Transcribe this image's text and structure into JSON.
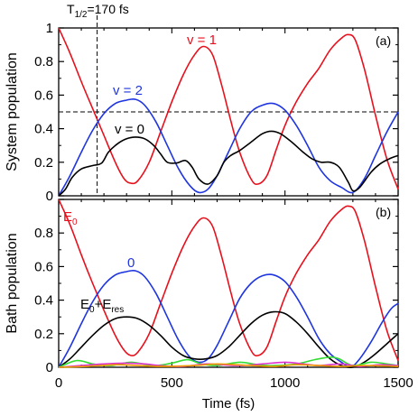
{
  "header": {
    "t_half": "T",
    "t_half_sub": "1/2",
    "t_half_value": "=170 fs"
  },
  "colors": {
    "red": "#e8101c",
    "blue": "#1f35e0",
    "black": "#000000",
    "green": "#33dd33",
    "magenta": "#dd33cc",
    "orange": "#ee9900"
  },
  "chart_data": [
    {
      "type": "line",
      "panel_label": "(a)",
      "ylabel": "System population",
      "xlim": [
        0,
        1500
      ],
      "ylim": [
        0,
        1
      ],
      "yticks": [
        "0",
        "0.2",
        "0.4",
        "0.6",
        "0.8",
        "1"
      ],
      "xticks": [],
      "grid": false,
      "annotations": {
        "vline_x": 170,
        "hline_y": 0.5
      },
      "series": [
        {
          "name": "v = 1",
          "color": "#e8101c",
          "points": [
            [
              0,
              1.0
            ],
            [
              50,
              0.85
            ],
            [
              100,
              0.68
            ],
            [
              150,
              0.52
            ],
            [
              200,
              0.36
            ],
            [
              250,
              0.2
            ],
            [
              290,
              0.1
            ],
            [
              320,
              0.075
            ],
            [
              350,
              0.09
            ],
            [
              400,
              0.2
            ],
            [
              450,
              0.38
            ],
            [
              500,
              0.56
            ],
            [
              550,
              0.72
            ],
            [
              600,
              0.84
            ],
            [
              640,
              0.89
            ],
            [
              680,
              0.84
            ],
            [
              720,
              0.66
            ],
            [
              760,
              0.45
            ],
            [
              800,
              0.26
            ],
            [
              850,
              0.1
            ],
            [
              880,
              0.07
            ],
            [
              920,
              0.12
            ],
            [
              960,
              0.27
            ],
            [
              1000,
              0.42
            ],
            [
              1050,
              0.56
            ],
            [
              1100,
              0.67
            ],
            [
              1150,
              0.76
            ],
            [
              1200,
              0.87
            ],
            [
              1250,
              0.94
            ],
            [
              1280,
              0.96
            ],
            [
              1310,
              0.93
            ],
            [
              1350,
              0.76
            ],
            [
              1400,
              0.48
            ],
            [
              1450,
              0.22
            ],
            [
              1500,
              0.04
            ]
          ]
        },
        {
          "name": "v = 2",
          "color": "#1f35e0",
          "points": [
            [
              0,
              0.0
            ],
            [
              50,
              0.12
            ],
            [
              100,
              0.26
            ],
            [
              150,
              0.39
            ],
            [
              200,
              0.49
            ],
            [
              250,
              0.55
            ],
            [
              300,
              0.57
            ],
            [
              340,
              0.575
            ],
            [
              380,
              0.54
            ],
            [
              430,
              0.44
            ],
            [
              480,
              0.3
            ],
            [
              530,
              0.16
            ],
            [
              580,
              0.06
            ],
            [
              620,
              0.02
            ],
            [
              660,
              0.04
            ],
            [
              700,
              0.12
            ],
            [
              750,
              0.26
            ],
            [
              800,
              0.4
            ],
            [
              850,
              0.5
            ],
            [
              900,
              0.54
            ],
            [
              950,
              0.55
            ],
            [
              1000,
              0.51
            ],
            [
              1050,
              0.42
            ],
            [
              1100,
              0.3
            ],
            [
              1150,
              0.17
            ],
            [
              1200,
              0.09
            ],
            [
              1250,
              0.05
            ],
            [
              1300,
              0.02
            ],
            [
              1350,
              0.1
            ],
            [
              1400,
              0.24
            ],
            [
              1450,
              0.38
            ],
            [
              1500,
              0.5
            ]
          ]
        },
        {
          "name": "v = 0",
          "color": "#000000",
          "points": [
            [
              0,
              0.0
            ],
            [
              30,
              0.04
            ],
            [
              60,
              0.11
            ],
            [
              100,
              0.16
            ],
            [
              150,
              0.18
            ],
            [
              190,
              0.195
            ],
            [
              220,
              0.26
            ],
            [
              260,
              0.31
            ],
            [
              300,
              0.34
            ],
            [
              340,
              0.35
            ],
            [
              380,
              0.34
            ],
            [
              420,
              0.3
            ],
            [
              450,
              0.25
            ],
            [
              480,
              0.2
            ],
            [
              520,
              0.195
            ],
            [
              560,
              0.21
            ],
            [
              590,
              0.17
            ],
            [
              620,
              0.1
            ],
            [
              660,
              0.07
            ],
            [
              700,
              0.12
            ],
            [
              730,
              0.2
            ],
            [
              760,
              0.24
            ],
            [
              800,
              0.27
            ],
            [
              850,
              0.32
            ],
            [
              900,
              0.37
            ],
            [
              940,
              0.385
            ],
            [
              980,
              0.37
            ],
            [
              1030,
              0.32
            ],
            [
              1080,
              0.26
            ],
            [
              1120,
              0.22
            ],
            [
              1160,
              0.2
            ],
            [
              1200,
              0.2
            ],
            [
              1240,
              0.17
            ],
            [
              1280,
              0.08
            ],
            [
              1300,
              0.03
            ],
            [
              1330,
              0.05
            ],
            [
              1380,
              0.14
            ],
            [
              1420,
              0.19
            ],
            [
              1460,
              0.22
            ],
            [
              1500,
              0.24
            ]
          ]
        }
      ]
    },
    {
      "type": "line",
      "panel_label": "(b)",
      "ylabel": "Bath population",
      "xlabel": "Time (fs)",
      "xlim": [
        0,
        1500
      ],
      "ylim": [
        0,
        1
      ],
      "yticks": [
        "0",
        "0.2",
        "0.4",
        "0.6",
        "0.8",
        ""
      ],
      "xticks": [
        "0",
        "500",
        "1000",
        "1500"
      ],
      "grid": false,
      "series": [
        {
          "name": "E0",
          "color": "#e8101c",
          "points": [
            [
              0,
              1.0
            ],
            [
              50,
              0.85
            ],
            [
              100,
              0.67
            ],
            [
              150,
              0.5
            ],
            [
              200,
              0.34
            ],
            [
              250,
              0.19
            ],
            [
              290,
              0.1
            ],
            [
              320,
              0.07
            ],
            [
              350,
              0.09
            ],
            [
              400,
              0.2
            ],
            [
              450,
              0.38
            ],
            [
              500,
              0.56
            ],
            [
              550,
              0.72
            ],
            [
              600,
              0.84
            ],
            [
              640,
              0.89
            ],
            [
              680,
              0.84
            ],
            [
              720,
              0.66
            ],
            [
              760,
              0.45
            ],
            [
              800,
              0.26
            ],
            [
              850,
              0.1
            ],
            [
              880,
              0.07
            ],
            [
              920,
              0.12
            ],
            [
              960,
              0.27
            ],
            [
              1000,
              0.42
            ],
            [
              1050,
              0.56
            ],
            [
              1100,
              0.67
            ],
            [
              1150,
              0.76
            ],
            [
              1200,
              0.87
            ],
            [
              1250,
              0.94
            ],
            [
              1280,
              0.96
            ],
            [
              1310,
              0.93
            ],
            [
              1350,
              0.76
            ],
            [
              1400,
              0.48
            ],
            [
              1450,
              0.22
            ],
            [
              1500,
              0.04
            ]
          ]
        },
        {
          "name": "0",
          "color": "#1f35e0",
          "points": [
            [
              0,
              0.0
            ],
            [
              50,
              0.12
            ],
            [
              100,
              0.26
            ],
            [
              150,
              0.39
            ],
            [
              200,
              0.49
            ],
            [
              250,
              0.55
            ],
            [
              300,
              0.57
            ],
            [
              340,
              0.575
            ],
            [
              380,
              0.54
            ],
            [
              430,
              0.44
            ],
            [
              480,
              0.3
            ],
            [
              530,
              0.16
            ],
            [
              580,
              0.06
            ],
            [
              620,
              0.03
            ],
            [
              660,
              0.05
            ],
            [
              700,
              0.13
            ],
            [
              750,
              0.27
            ],
            [
              800,
              0.41
            ],
            [
              850,
              0.5
            ],
            [
              900,
              0.545
            ],
            [
              950,
              0.55
            ],
            [
              1000,
              0.51
            ],
            [
              1050,
              0.42
            ],
            [
              1100,
              0.3
            ],
            [
              1150,
              0.17
            ],
            [
              1200,
              0.08
            ],
            [
              1250,
              0.03
            ],
            [
              1290,
              0.0
            ],
            [
              1330,
              0.05
            ],
            [
              1380,
              0.15
            ],
            [
              1430,
              0.27
            ],
            [
              1470,
              0.35
            ],
            [
              1500,
              0.38
            ]
          ]
        },
        {
          "name": "E0+Eres",
          "color": "#000000",
          "points": [
            [
              0,
              0.0
            ],
            [
              50,
              0.05
            ],
            [
              100,
              0.12
            ],
            [
              150,
              0.19
            ],
            [
              200,
              0.25
            ],
            [
              250,
              0.29
            ],
            [
              300,
              0.3
            ],
            [
              350,
              0.29
            ],
            [
              400,
              0.25
            ],
            [
              450,
              0.19
            ],
            [
              500,
              0.12
            ],
            [
              550,
              0.07
            ],
            [
              600,
              0.05
            ],
            [
              650,
              0.05
            ],
            [
              700,
              0.07
            ],
            [
              750,
              0.12
            ],
            [
              800,
              0.19
            ],
            [
              850,
              0.26
            ],
            [
              900,
              0.31
            ],
            [
              950,
              0.33
            ],
            [
              1000,
              0.32
            ],
            [
              1050,
              0.27
            ],
            [
              1100,
              0.2
            ],
            [
              1150,
              0.12
            ],
            [
              1200,
              0.05
            ],
            [
              1250,
              0.01
            ],
            [
              1300,
              0.0
            ],
            [
              1350,
              0.03
            ],
            [
              1400,
              0.08
            ],
            [
              1450,
              0.14
            ],
            [
              1500,
              0.2
            ]
          ]
        },
        {
          "color": "#33dd33",
          "points": [
            [
              0,
              0.0
            ],
            [
              80,
              0.04
            ],
            [
              150,
              0.02
            ],
            [
              230,
              0.01
            ],
            [
              320,
              0.03
            ],
            [
              420,
              0.01
            ],
            [
              500,
              0.025
            ],
            [
              570,
              0.045
            ],
            [
              630,
              0.02
            ],
            [
              700,
              0.01
            ],
            [
              800,
              0.03
            ],
            [
              880,
              0.015
            ],
            [
              950,
              0.01
            ],
            [
              1050,
              0.02
            ],
            [
              1130,
              0.045
            ],
            [
              1200,
              0.06
            ],
            [
              1240,
              0.05
            ],
            [
              1300,
              0.01
            ],
            [
              1380,
              0.03
            ],
            [
              1450,
              0.02
            ],
            [
              1500,
              0.01
            ]
          ]
        },
        {
          "color": "#dd33cc",
          "points": [
            [
              0,
              0.0
            ],
            [
              100,
              0.01
            ],
            [
              200,
              0.02
            ],
            [
              300,
              0.025
            ],
            [
              380,
              0.02
            ],
            [
              450,
              0.01
            ],
            [
              550,
              0.005
            ],
            [
              650,
              0.02
            ],
            [
              720,
              0.015
            ],
            [
              800,
              0.01
            ],
            [
              900,
              0.02
            ],
            [
              1000,
              0.03
            ],
            [
              1080,
              0.02
            ],
            [
              1150,
              0.01
            ],
            [
              1250,
              0.02
            ],
            [
              1330,
              0.005
            ],
            [
              1420,
              0.015
            ],
            [
              1500,
              0.01
            ]
          ]
        },
        {
          "color": "#ee9900",
          "points": [
            [
              0,
              0.0
            ],
            [
              120,
              0.005
            ],
            [
              250,
              0.015
            ],
            [
              350,
              0.01
            ],
            [
              450,
              0.005
            ],
            [
              600,
              0.01
            ],
            [
              700,
              0.02
            ],
            [
              850,
              0.01
            ],
            [
              950,
              0.005
            ],
            [
              1050,
              0.015
            ],
            [
              1150,
              0.01
            ],
            [
              1250,
              0.005
            ],
            [
              1350,
              0.01
            ],
            [
              1500,
              0.005
            ]
          ]
        }
      ]
    }
  ],
  "labels": {
    "a_v1": "v = 1",
    "a_v2": "v = 2",
    "a_v0": "v = 0",
    "b_e0": "E",
    "b_e0_sub": "0",
    "b_zero": "0",
    "b_eres_1": "E",
    "b_eres_1_sub": "0",
    "b_eres_plus": "+E",
    "b_eres_sub": "res"
  }
}
